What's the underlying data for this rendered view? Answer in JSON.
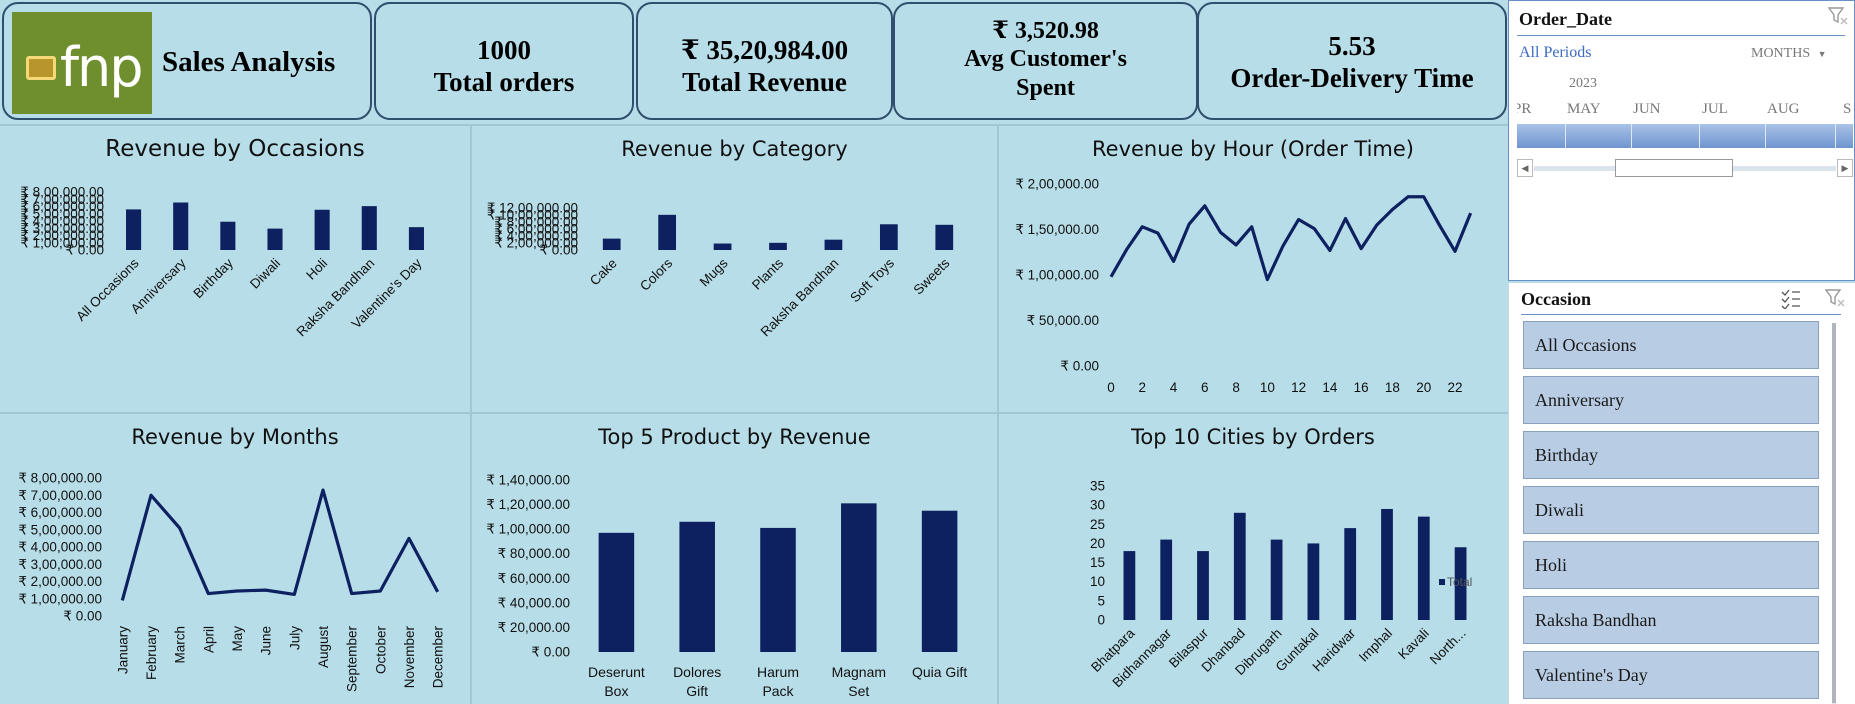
{
  "header": {
    "logo_text": "fnp",
    "title": "Sales Analysis"
  },
  "kpis": [
    {
      "value": "1000",
      "label": "Total orders"
    },
    {
      "value": "₹ 35,20,984.00",
      "label": "Total Revenue"
    },
    {
      "value": "₹ 3,520.98",
      "label": "Avg Customer's Spent"
    },
    {
      "value": "5.53",
      "label": "Order-Delivery Time"
    }
  ],
  "colors": {
    "bar": "#0d2160",
    "background": "#b7dde8",
    "slicer_item": "#b8cce4",
    "timeline_bar": "#6f95d0"
  },
  "order_date_slicer": {
    "title": "Order_Date",
    "periods_label": "All Periods",
    "unit_label": "MONTHS",
    "year": "2023",
    "months": [
      "PR",
      "MAY",
      "JUN",
      "JUL",
      "AUG",
      "S"
    ]
  },
  "occasion_slicer": {
    "title": "Occasion",
    "items": [
      "All Occasions",
      "Anniversary",
      "Birthday",
      "Diwali",
      "Holi",
      "Raksha Bandhan",
      "Valentine's Day"
    ]
  },
  "chart_data": [
    {
      "id": "occasions",
      "type": "bar",
      "title": "Revenue by Occasions",
      "categories": [
        "All Occasions",
        "Anniversary",
        "Birthday",
        "Diwali",
        "Holi",
        "Raksha Bandhan",
        "Valentine's Day"
      ],
      "values": [
        560000,
        655000,
        390000,
        295000,
        555000,
        605000,
        315000
      ],
      "ylim": [
        0,
        800000
      ],
      "yticks": [
        "₹ 0.00",
        "₹ 1,00,000.00",
        "₹ 2,00,000.00",
        "₹ 3,00,000.00",
        "₹ 4,00,000.00",
        "₹ 5,00,000.00",
        "₹ 6,00,000.00",
        "₹ 7,00,000.00",
        "₹ 8,00,000.00"
      ]
    },
    {
      "id": "category",
      "type": "bar",
      "title": "Revenue by Category",
      "categories": [
        "Cake",
        "Colors",
        "Mugs",
        "Plants",
        "Raksha Bandhan",
        "Soft Toys",
        "Sweets"
      ],
      "values": [
        325000,
        1005000,
        185000,
        205000,
        295000,
        735000,
        720000
      ],
      "ylim": [
        0,
        1200000
      ],
      "yticks": [
        "₹ 0.00",
        "₹ 2,00,000.00",
        "₹ 4,00,000.00",
        "₹ 6,00,000.00",
        "₹ 8,00,000.00",
        "₹ 10,00,000.00",
        "₹ 12,00,000.00"
      ]
    },
    {
      "id": "hour",
      "type": "line",
      "title": "Revenue by Hour (Order Time)",
      "x": [
        0,
        1,
        2,
        3,
        4,
        5,
        6,
        7,
        8,
        9,
        10,
        11,
        12,
        13,
        14,
        15,
        16,
        17,
        18,
        19,
        20,
        21,
        22,
        23
      ],
      "values": [
        98000,
        128000,
        153000,
        146000,
        115000,
        156000,
        176000,
        147000,
        133000,
        153000,
        95000,
        132000,
        161000,
        151000,
        127000,
        162000,
        129000,
        155000,
        172000,
        186000,
        186000,
        155000,
        126000,
        168000
      ],
      "ylim": [
        0,
        200000
      ],
      "xticks": [
        "0",
        "2",
        "4",
        "6",
        "8",
        "10",
        "12",
        "14",
        "16",
        "18",
        "20",
        "22"
      ],
      "yticks": [
        "₹ 0.00",
        "₹ 50,000.00",
        "₹ 1,00,000.00",
        "₹ 1,50,000.00",
        "₹ 2,00,000.00"
      ]
    },
    {
      "id": "months",
      "type": "line",
      "title": "Revenue by Months",
      "categories": [
        "January",
        "February",
        "March",
        "April",
        "May",
        "June",
        "July",
        "August",
        "September",
        "October",
        "November",
        "December"
      ],
      "values": [
        90000,
        700000,
        510000,
        130000,
        145000,
        150000,
        125000,
        730000,
        130000,
        145000,
        450000,
        140000
      ],
      "ylim": [
        0,
        800000
      ],
      "yticks": [
        "₹ 0.00",
        "₹ 1,00,000.00",
        "₹ 2,00,000.00",
        "₹ 3,00,000.00",
        "₹ 4,00,000.00",
        "₹ 5,00,000.00",
        "₹ 6,00,000.00",
        "₹ 7,00,000.00",
        "₹ 8,00,000.00"
      ]
    },
    {
      "id": "products",
      "type": "bar",
      "title": "Top 5 Product by Revenue",
      "categories": [
        [
          "Deserunt",
          "Box"
        ],
        [
          "Dolores",
          "Gift"
        ],
        [
          "Harum",
          "Pack"
        ],
        [
          "Magnam",
          "Set"
        ],
        [
          "Quia Gift"
        ]
      ],
      "values": [
        97000,
        106000,
        101000,
        121000,
        115000
      ],
      "ylim": [
        0,
        140000
      ],
      "yticks": [
        "₹ 0.00",
        "₹ 20,000.00",
        "₹ 40,000.00",
        "₹ 60,000.00",
        "₹ 80,000.00",
        "₹ 1,00,000.00",
        "₹ 1,20,000.00",
        "₹ 1,40,000.00"
      ]
    },
    {
      "id": "cities",
      "type": "bar",
      "title": "Top 10 Cities by Orders",
      "categories": [
        "Bhatpara",
        "Bidhannagar",
        "Bilaspur",
        "Dhanbad",
        "Dibrugarh",
        "Guntakal",
        "Haridwar",
        "Imphal",
        "Kavali",
        "North..."
      ],
      "values": [
        18,
        21,
        18,
        28,
        21,
        20,
        24,
        29,
        27,
        19
      ],
      "ylim": [
        0,
        35
      ],
      "yticks": [
        "0",
        "5",
        "10",
        "15",
        "20",
        "25",
        "30",
        "35"
      ],
      "legend": "Total"
    }
  ]
}
